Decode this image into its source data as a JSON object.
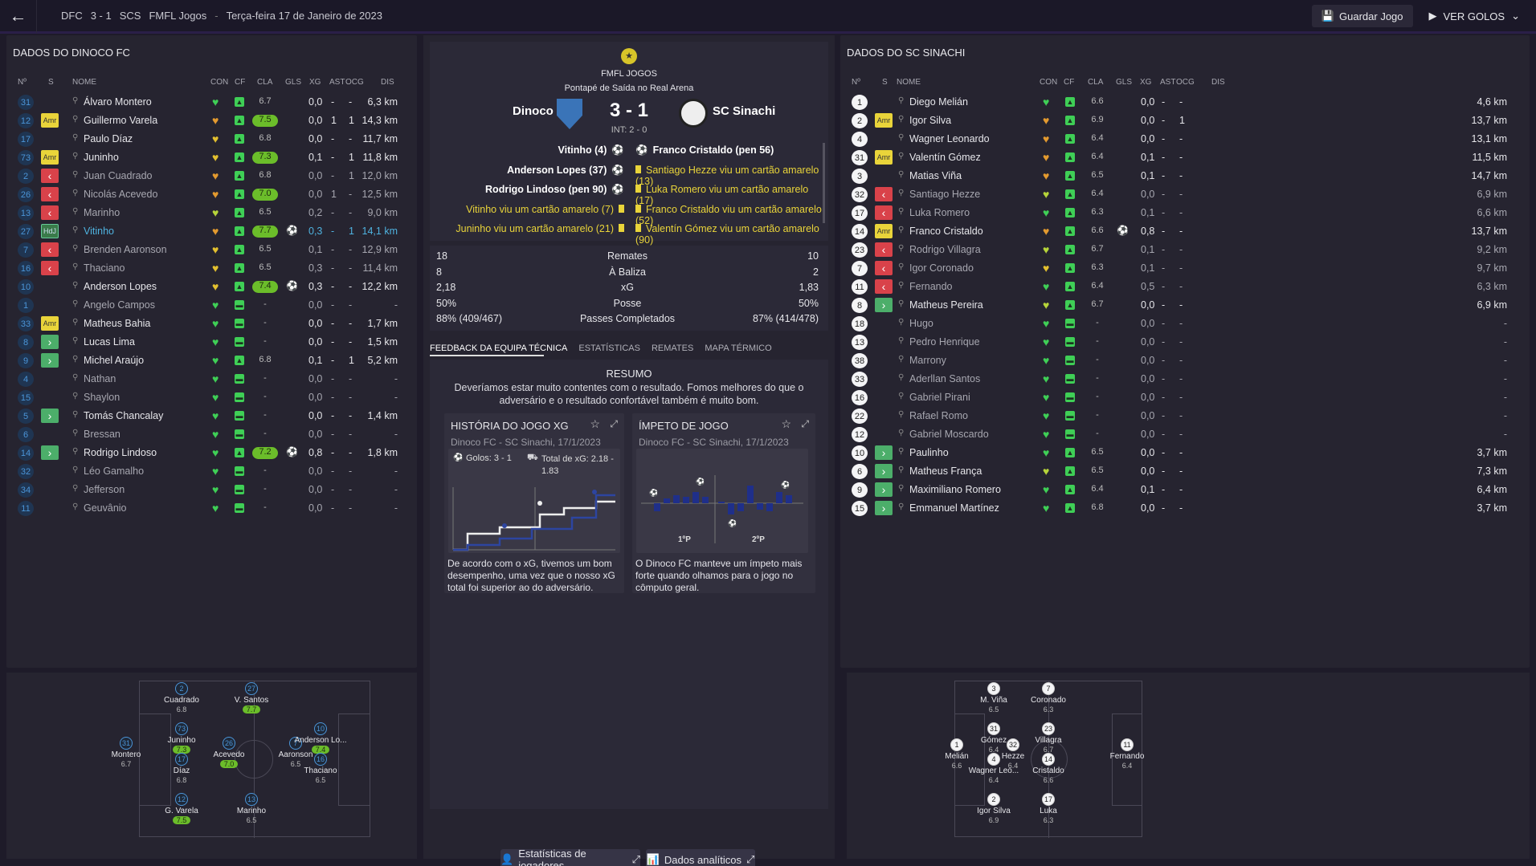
{
  "topbar": {
    "team_a": "DFC",
    "score": "3 - 1",
    "team_b": "SCS",
    "competition": "FMFL Jogos",
    "date": "Terça-feira 17 de Janeiro de 2023",
    "save_label": "Guardar Jogo",
    "goals_label": "VER GOLOS"
  },
  "left": {
    "title": "DADOS DO DINOCO FC",
    "headers": {
      "no": "Nº",
      "s": "S",
      "name": "NOME",
      "con": "CON",
      "cf": "CF",
      "cla": "CLA",
      "gls": "GLS",
      "xg": "XG",
      "ast": "AST",
      "ocg": "OCG",
      "dis": "DIS"
    },
    "rows": [
      {
        "no": "31",
        "badge": "",
        "name": "Álvaro Montero",
        "cla": "6.7",
        "hi": false,
        "gls": "",
        "xg": "0,0",
        "ast": "-",
        "ocg": "-",
        "dis": "6,3 km",
        "heart": "#3fcf56"
      },
      {
        "no": "12",
        "badge": "Amr",
        "name": "Guillermo Varela",
        "cla": "7.5",
        "hi": true,
        "gls": "",
        "xg": "0,0",
        "ast": "1",
        "ocg": "1",
        "dis": "14,3 km",
        "heart": "#e39a2f"
      },
      {
        "no": "17",
        "badge": "",
        "name": "Paulo Díaz",
        "cla": "6.8",
        "hi": false,
        "gls": "",
        "xg": "0,0",
        "ast": "-",
        "ocg": "-",
        "dis": "11,7 km",
        "heart": "#e3c02f"
      },
      {
        "no": "73",
        "badge": "Amr",
        "name": "Juninho",
        "cla": "7.3",
        "hi": true,
        "gls": "",
        "xg": "0,1",
        "ast": "-",
        "ocg": "1",
        "dis": "11,8 km",
        "heart": "#e3c02f"
      },
      {
        "no": "2",
        "badge": "out",
        "name": "Juan Cuadrado",
        "cla": "6.8",
        "hi": false,
        "gls": "",
        "xg": "0,0",
        "ast": "-",
        "ocg": "1",
        "dis": "12,0 km",
        "heart": "#e39a2f",
        "muted": true
      },
      {
        "no": "26",
        "badge": "out",
        "name": "Nicolás Acevedo",
        "cla": "7.0",
        "hi": true,
        "gls": "",
        "xg": "0,0",
        "ast": "1",
        "ocg": "-",
        "dis": "12,5 km",
        "heart": "#e39a2f",
        "muted": true
      },
      {
        "no": "13",
        "badge": "out",
        "name": "Marinho",
        "cla": "6.5",
        "hi": false,
        "gls": "",
        "xg": "0,2",
        "ast": "-",
        "ocg": "-",
        "dis": "9,0 km",
        "heart": "#b6d43a",
        "muted": true
      },
      {
        "no": "27",
        "badge": "HdJ",
        "name": "Vitinho",
        "cla": "7.7",
        "hi": true,
        "gls": "⚽",
        "xg": "0,3",
        "ast": "-",
        "ocg": "1",
        "dis": "14,1 km",
        "heart": "#e39a2f",
        "mvp": true
      },
      {
        "no": "7",
        "badge": "out",
        "name": "Brenden Aaronson",
        "cla": "6.5",
        "hi": false,
        "gls": "",
        "xg": "0,1",
        "ast": "-",
        "ocg": "-",
        "dis": "12,9 km",
        "heart": "#e3c02f",
        "muted": true
      },
      {
        "no": "16",
        "badge": "out",
        "name": "Thaciano",
        "cla": "6.5",
        "hi": false,
        "gls": "",
        "xg": "0,3",
        "ast": "-",
        "ocg": "-",
        "dis": "11,4 km",
        "heart": "#e3c02f",
        "muted": true
      },
      {
        "no": "10",
        "badge": "",
        "name": "Anderson Lopes",
        "cla": "7.4",
        "hi": true,
        "gls": "⚽",
        "xg": "0,3",
        "ast": "-",
        "ocg": "-",
        "dis": "12,2 km",
        "heart": "#e3c02f"
      },
      {
        "no": "1",
        "badge": "",
        "name": "Angelo Campos",
        "cla": "-",
        "hi": false,
        "gls": "",
        "xg": "0,0",
        "ast": "-",
        "ocg": "-",
        "dis": "-",
        "heart": "#3fcf56",
        "muted": true
      },
      {
        "no": "33",
        "badge": "Amr",
        "name": "Matheus Bahia",
        "cla": "-",
        "hi": false,
        "gls": "",
        "xg": "0,0",
        "ast": "-",
        "ocg": "-",
        "dis": "1,7 km",
        "heart": "#3fcf56"
      },
      {
        "no": "8",
        "badge": "in",
        "name": "Lucas Lima",
        "cla": "-",
        "hi": false,
        "gls": "",
        "xg": "0,0",
        "ast": "-",
        "ocg": "-",
        "dis": "1,5 km",
        "heart": "#3fcf56"
      },
      {
        "no": "9",
        "badge": "in",
        "name": "Michel Araújo",
        "cla": "6.8",
        "hi": false,
        "gls": "",
        "xg": "0,1",
        "ast": "-",
        "ocg": "1",
        "dis": "5,2 km",
        "heart": "#3fcf56"
      },
      {
        "no": "4",
        "badge": "",
        "name": "Nathan",
        "cla": "-",
        "hi": false,
        "gls": "",
        "xg": "0,0",
        "ast": "-",
        "ocg": "-",
        "dis": "-",
        "heart": "#3fcf56",
        "muted": true
      },
      {
        "no": "15",
        "badge": "",
        "name": "Shaylon",
        "cla": "-",
        "hi": false,
        "gls": "",
        "xg": "0,0",
        "ast": "-",
        "ocg": "-",
        "dis": "-",
        "heart": "#3fcf56",
        "muted": true
      },
      {
        "no": "5",
        "badge": "in",
        "name": "Tomás Chancalay",
        "cla": "-",
        "hi": false,
        "gls": "",
        "xg": "0,0",
        "ast": "-",
        "ocg": "-",
        "dis": "1,4 km",
        "heart": "#3fcf56"
      },
      {
        "no": "6",
        "badge": "",
        "name": "Bressan",
        "cla": "-",
        "hi": false,
        "gls": "",
        "xg": "0,0",
        "ast": "-",
        "ocg": "-",
        "dis": "-",
        "heart": "#3fcf56",
        "muted": true
      },
      {
        "no": "14",
        "badge": "in",
        "name": "Rodrigo Lindoso",
        "cla": "7.2",
        "hi": true,
        "gls": "⚽",
        "xg": "0,8",
        "ast": "-",
        "ocg": "-",
        "dis": "1,8 km",
        "heart": "#3fcf56"
      },
      {
        "no": "32",
        "badge": "",
        "name": "Léo Gamalho",
        "cla": "-",
        "hi": false,
        "gls": "",
        "xg": "0,0",
        "ast": "-",
        "ocg": "-",
        "dis": "-",
        "heart": "#3fcf56",
        "muted": true
      },
      {
        "no": "34",
        "badge": "",
        "name": "Jefferson",
        "cla": "-",
        "hi": false,
        "gls": "",
        "xg": "0,0",
        "ast": "-",
        "ocg": "-",
        "dis": "-",
        "heart": "#3fcf56",
        "muted": true
      },
      {
        "no": "11",
        "badge": "",
        "name": "Geuvânio",
        "cla": "-",
        "hi": false,
        "gls": "",
        "xg": "0,0",
        "ast": "-",
        "ocg": "-",
        "dis": "-",
        "heart": "#3fcf56",
        "muted": true
      }
    ]
  },
  "right": {
    "title": "DADOS DO SC SINACHI",
    "rows": [
      {
        "no": "1",
        "badge": "",
        "name": "Diego Melián",
        "cla": "6.6",
        "gls": "",
        "xg": "0,0",
        "ast": "-",
        "ocg": "-",
        "dis": "4,6 km",
        "heart": "#3fcf56"
      },
      {
        "no": "2",
        "badge": "Amr",
        "name": "Igor Silva",
        "cla": "6.9",
        "gls": "",
        "xg": "0,0",
        "ast": "-",
        "ocg": "1",
        "dis": "13,7 km",
        "heart": "#e39a2f"
      },
      {
        "no": "4",
        "badge": "",
        "name": "Wagner Leonardo",
        "cla": "6.4",
        "gls": "",
        "xg": "0,0",
        "ast": "-",
        "ocg": "-",
        "dis": "13,1 km",
        "heart": "#e39a2f"
      },
      {
        "no": "31",
        "badge": "Amr",
        "name": "Valentín Gómez",
        "cla": "6.4",
        "gls": "",
        "xg": "0,1",
        "ast": "-",
        "ocg": "-",
        "dis": "11,5 km",
        "heart": "#e39a2f"
      },
      {
        "no": "3",
        "badge": "",
        "name": "Matias Viña",
        "cla": "6.5",
        "gls": "",
        "xg": "0,1",
        "ast": "-",
        "ocg": "-",
        "dis": "14,7 km",
        "heart": "#e39a2f"
      },
      {
        "no": "32",
        "badge": "out",
        "name": "Santiago Hezze",
        "cla": "6.4",
        "gls": "",
        "xg": "0,0",
        "ast": "-",
        "ocg": "-",
        "dis": "6,9 km",
        "heart": "#b6d43a",
        "muted": true
      },
      {
        "no": "17",
        "badge": "out",
        "name": "Luka Romero",
        "cla": "6.3",
        "gls": "",
        "xg": "0,1",
        "ast": "-",
        "ocg": "-",
        "dis": "6,6 km",
        "heart": "#3fcf56",
        "muted": true
      },
      {
        "no": "14",
        "badge": "Amr",
        "name": "Franco Cristaldo",
        "cla": "6.6",
        "gls": "⚽",
        "xg": "0,8",
        "ast": "-",
        "ocg": "-",
        "dis": "13,7 km",
        "heart": "#e39a2f"
      },
      {
        "no": "23",
        "badge": "out",
        "name": "Rodrigo Villagra",
        "cla": "6.7",
        "gls": "",
        "xg": "0,1",
        "ast": "-",
        "ocg": "-",
        "dis": "9,2 km",
        "heart": "#b6d43a",
        "muted": true
      },
      {
        "no": "7",
        "badge": "out",
        "name": "Igor Coronado",
        "cla": "6.3",
        "gls": "",
        "xg": "0,1",
        "ast": "-",
        "ocg": "-",
        "dis": "9,7 km",
        "heart": "#e3c02f",
        "muted": true
      },
      {
        "no": "11",
        "badge": "out",
        "name": "Fernando",
        "cla": "6.4",
        "gls": "",
        "xg": "0,5",
        "ast": "-",
        "ocg": "-",
        "dis": "6,3 km",
        "heart": "#3fcf56",
        "muted": true
      },
      {
        "no": "8",
        "badge": "in",
        "name": "Matheus Pereira",
        "cla": "6.7",
        "gls": "",
        "xg": "0,0",
        "ast": "-",
        "ocg": "-",
        "dis": "6,9 km",
        "heart": "#b6d43a"
      },
      {
        "no": "18",
        "badge": "",
        "name": "Hugo",
        "cla": "-",
        "gls": "",
        "xg": "0,0",
        "ast": "-",
        "ocg": "-",
        "dis": "-",
        "heart": "#3fcf56",
        "muted": true
      },
      {
        "no": "13",
        "badge": "",
        "name": "Pedro Henrique",
        "cla": "-",
        "gls": "",
        "xg": "0,0",
        "ast": "-",
        "ocg": "-",
        "dis": "-",
        "heart": "#3fcf56",
        "muted": true
      },
      {
        "no": "38",
        "badge": "",
        "name": "Marrony",
        "cla": "-",
        "gls": "",
        "xg": "0,0",
        "ast": "-",
        "ocg": "-",
        "dis": "-",
        "heart": "#3fcf56",
        "muted": true
      },
      {
        "no": "33",
        "badge": "",
        "name": "Aderllan Santos",
        "cla": "-",
        "gls": "",
        "xg": "0,0",
        "ast": "-",
        "ocg": "-",
        "dis": "-",
        "heart": "#3fcf56",
        "muted": true
      },
      {
        "no": "16",
        "badge": "",
        "name": "Gabriel Pirani",
        "cla": "-",
        "gls": "",
        "xg": "0,0",
        "ast": "-",
        "ocg": "-",
        "dis": "-",
        "heart": "#3fcf56",
        "muted": true
      },
      {
        "no": "22",
        "badge": "",
        "name": "Rafael Romo",
        "cla": "-",
        "gls": "",
        "xg": "0,0",
        "ast": "-",
        "ocg": "-",
        "dis": "-",
        "heart": "#3fcf56",
        "muted": true
      },
      {
        "no": "12",
        "badge": "",
        "name": "Gabriel Moscardo",
        "cla": "-",
        "gls": "",
        "xg": "0,0",
        "ast": "-",
        "ocg": "-",
        "dis": "-",
        "heart": "#3fcf56",
        "muted": true
      },
      {
        "no": "10",
        "badge": "in",
        "name": "Paulinho",
        "cla": "6.5",
        "gls": "",
        "xg": "0,0",
        "ast": "-",
        "ocg": "-",
        "dis": "3,7 km",
        "heart": "#3fcf56"
      },
      {
        "no": "6",
        "badge": "in",
        "name": "Matheus França",
        "cla": "6.5",
        "gls": "",
        "xg": "0,0",
        "ast": "-",
        "ocg": "-",
        "dis": "7,3 km",
        "heart": "#b6d43a"
      },
      {
        "no": "9",
        "badge": "in",
        "name": "Maximiliano Romero",
        "cla": "6.4",
        "gls": "",
        "xg": "0,1",
        "ast": "-",
        "ocg": "-",
        "dis": "6,4 km",
        "heart": "#3fcf56"
      },
      {
        "no": "15",
        "badge": "in",
        "name": "Emmanuel Martínez",
        "cla": "6.8",
        "gls": "",
        "xg": "0,0",
        "ast": "-",
        "ocg": "-",
        "dis": "3,7 km",
        "heart": "#3fcf56"
      }
    ]
  },
  "match": {
    "competition": "FMFL JOGOS",
    "kickoff": "Pontapé de Saída no Real Arena",
    "home": "Dinoco FC",
    "away": "SC Sinachi",
    "score": "3 - 1",
    "ht": "INT: 2 - 0",
    "home_events": [
      "Vitinho (4)",
      "Anderson Lopes (37)",
      "Rodrigo Lindoso (pen 90)",
      "Vitinho viu um cartão amarelo (7)",
      "Juninho viu um cartão amarelo (21)"
    ],
    "away_events": [
      "Franco Cristaldo (pen 56)",
      "Santiago Hezze viu um cartão amarelo (13)",
      "Luka Romero viu um cartão amarelo (17)",
      "Franco Cristaldo viu um cartão amarelo (52)",
      "Valentín Gómez viu um cartão amarelo (90)"
    ],
    "stats": [
      {
        "h": "18",
        "l": "Remates",
        "a": "10"
      },
      {
        "h": "8",
        "l": "À Baliza",
        "a": "2"
      },
      {
        "h": "2,18",
        "l": "xG",
        "a": "1,83"
      },
      {
        "h": "50%",
        "l": "Posse",
        "a": "50%"
      },
      {
        "h": "88% (409/467)",
        "l": "Passes Completados",
        "a": "87% (414/478)"
      }
    ],
    "tabs": [
      "FEEDBACK DA EQUIPA TÉCNICA",
      "ESTATÍSTICAS",
      "REMATES",
      "MAPA TÉRMICO"
    ],
    "summary_title": "RESUMO",
    "summary": "Deveríamos estar muito contentes com o resultado. Fomos melhores do que o adversário e o resultado confortável também é muito bom.",
    "xg_card": {
      "title": "HISTÓRIA DO JOGO XG",
      "sub": "Dinoco FC - SC Sinachi, 17/1/2023",
      "goals": "Golos: 3 - 1",
      "xg_total": "Total de xG: 2.18 - 1.83",
      "text": "De acordo com o xG, tivemos um bom desempenho, uma vez que o nosso xG total foi superior ao do adversário."
    },
    "mom_card": {
      "title": "ÍMPETO DE JOGO",
      "sub": "Dinoco FC - SC Sinachi, 17/1/2023",
      "h1": "1ºP",
      "h2": "2ºP",
      "text": "O Dinoco FC manteve um ímpeto mais forte quando olhamos para o jogo no cômputo geral."
    },
    "btn_players": "Estatísticas de jogadores",
    "btn_analytics": "Dados analíticos"
  },
  "pitch_left": [
    {
      "n": "2",
      "nm": "Cuadrado",
      "rt": "6.8",
      "g": false
    },
    {
      "n": "27",
      "nm": "V. Santos",
      "rt": "7.7",
      "g": true
    },
    {
      "n": "73",
      "nm": "Juninho",
      "rt": "7.3",
      "g": true
    },
    {
      "n": "31",
      "nm": "Montero",
      "rt": "6.7",
      "g": false
    },
    {
      "n": "26",
      "nm": "Acevedo",
      "rt": "7.0",
      "g": true
    },
    {
      "n": "7",
      "nm": "Aaronson",
      "rt": "6.5",
      "g": false
    },
    {
      "n": "10",
      "nm": "Anderson Lo...",
      "rt": "7.4",
      "g": true
    },
    {
      "n": "17",
      "nm": "Díaz",
      "rt": "6.8",
      "g": false
    },
    {
      "n": "16",
      "nm": "Thaciano",
      "rt": "6.5",
      "g": false
    },
    {
      "n": "12",
      "nm": "G. Varela",
      "rt": "7.5",
      "g": true
    },
    {
      "n": "13",
      "nm": "Marinho",
      "rt": "6.5",
      "g": false
    }
  ],
  "pitch_right": [
    {
      "n": "3",
      "nm": "M. Viña",
      "rt": "6.5"
    },
    {
      "n": "7",
      "nm": "Coronado",
      "rt": "6.3"
    },
    {
      "n": "31",
      "nm": "Gómez",
      "rt": "6.4"
    },
    {
      "n": "23",
      "nm": "Villagra",
      "rt": "6.7"
    },
    {
      "n": "1",
      "nm": "Melián",
      "rt": "6.6"
    },
    {
      "n": "32",
      "nm": "Hezze",
      "rt": "6.4"
    },
    {
      "n": "11",
      "nm": "Fernando",
      "rt": "6.4"
    },
    {
      "n": "4",
      "nm": "Wagner Leo...",
      "rt": "6.4"
    },
    {
      "n": "14",
      "nm": "Cristaldo",
      "rt": "6.6"
    },
    {
      "n": "2",
      "nm": "Igor Silva",
      "rt": "6.9"
    },
    {
      "n": "17",
      "nm": "Luka",
      "rt": "6.3"
    }
  ],
  "colors": {
    "bg": "#1e1b29",
    "panel": "#262430",
    "green": "#3fcf56",
    "yellow": "#e9d43a",
    "red": "#d9424a",
    "blue": "#4b95d8"
  }
}
